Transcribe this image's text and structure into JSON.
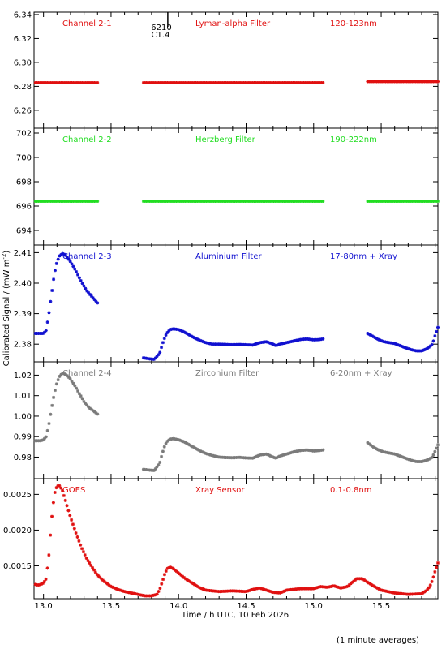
{
  "colors": {
    "axis": "#000000",
    "red": "#e01010",
    "green": "#22dd22",
    "blue": "#1010d0",
    "grey": "#7a7a7a"
  },
  "shared": {
    "xlabel": "Time / h UTC, 10 Feb 2026",
    "ylabel": "Calibrated Signal / (mW m",
    "ylabel_sup": "-2",
    "ylabel_close": ")",
    "footnote": "(1 minute averages)",
    "xlim": [
      12.93,
      15.92
    ],
    "xticks": [
      13.0,
      13.5,
      14.0,
      14.5,
      15.0,
      15.5
    ],
    "xtick_labels": [
      "13.0",
      "13.5",
      "14.0",
      "14.5",
      "15.0",
      "15.5"
    ]
  },
  "marker": {
    "label_top": "6210",
    "label_bottom": "C1.4",
    "x": 13.92
  },
  "chart_data": [
    {
      "type": "scatter",
      "channel": "Channel 2-1",
      "filter": "Lyman-alpha Filter",
      "band": "120-123nm",
      "color": "#e01010",
      "ylim": [
        6.245,
        6.342
      ],
      "yticks": [
        6.26,
        6.28,
        6.3,
        6.32,
        6.34
      ],
      "ytick_labels": [
        "6.26",
        "6.28",
        "6.30",
        "6.32",
        "6.34"
      ],
      "series": [
        {
          "x": [
            12.94,
            13.4
          ],
          "y": [
            6.283,
            6.283
          ]
        },
        {
          "x": [
            13.74,
            15.07
          ],
          "y": [
            6.283,
            6.283
          ]
        },
        {
          "x": [
            15.4,
            15.92
          ],
          "y": [
            6.284,
            6.284
          ]
        }
      ]
    },
    {
      "type": "scatter",
      "channel": "Channel 2-2",
      "filter": "Herzberg Filter",
      "band": "190-222nm",
      "color": "#22dd22",
      "ylim": [
        692.8,
        702.4
      ],
      "yticks": [
        694,
        696,
        698,
        700,
        702
      ],
      "ytick_labels": [
        "694",
        "696",
        "698",
        "700",
        "702"
      ],
      "series": [
        {
          "x": [
            12.94,
            13.4
          ],
          "y": [
            696.4,
            696.4
          ]
        },
        {
          "x": [
            13.74,
            15.07
          ],
          "y": [
            696.4,
            696.4
          ]
        },
        {
          "x": [
            15.4,
            15.92
          ],
          "y": [
            696.4,
            696.4
          ]
        }
      ]
    },
    {
      "type": "scatter",
      "channel": "Channel 2-3",
      "filter": "Aluminium Filter",
      "band": "17-80nm + Xray",
      "color": "#1010d0",
      "ylim": [
        2.3742,
        2.4125
      ],
      "yticks": [
        2.38,
        2.39,
        2.4,
        2.41
      ],
      "ytick_labels": [
        "2.38",
        "2.39",
        "2.40",
        "2.41"
      ],
      "series": [
        {
          "x": [
            12.94,
            12.98,
            13.0,
            13.02,
            13.04,
            13.06,
            13.08,
            13.1,
            13.12,
            13.14,
            13.16,
            13.18,
            13.2,
            13.22,
            13.24,
            13.26,
            13.28,
            13.3,
            13.32,
            13.34,
            13.36,
            13.38,
            13.4
          ],
          "y": [
            2.3835,
            2.3835,
            2.3835,
            2.3845,
            2.39,
            2.3965,
            2.403,
            2.407,
            2.409,
            2.4097,
            2.4093,
            2.4082,
            2.407,
            2.4055,
            2.404,
            2.4022,
            2.4005,
            2.399,
            2.3975,
            2.3965,
            2.3955,
            2.3945,
            2.3935
          ]
        },
        {
          "x": [
            13.74,
            13.78,
            13.82,
            13.86,
            13.88,
            13.9,
            13.92,
            13.94,
            13.96,
            14.0,
            14.04,
            14.08,
            14.12,
            14.16,
            14.2,
            14.25,
            14.3,
            14.35,
            14.4,
            14.45,
            14.5,
            14.55,
            14.6,
            14.65,
            14.7,
            14.72,
            14.75,
            14.8,
            14.85,
            14.9,
            14.95,
            15.0,
            15.04,
            15.07
          ],
          "y": [
            2.3755,
            2.3752,
            2.375,
            2.377,
            2.38,
            2.3825,
            2.384,
            2.3848,
            2.385,
            2.3848,
            2.384,
            2.383,
            2.382,
            2.3812,
            2.3805,
            2.38,
            2.38,
            2.3799,
            2.3798,
            2.3799,
            2.3798,
            2.3797,
            2.3805,
            2.3808,
            2.38,
            2.3795,
            2.38,
            2.3805,
            2.381,
            2.3815,
            2.3817,
            2.3814,
            2.3815,
            2.3817
          ]
        },
        {
          "x": [
            15.4,
            15.44,
            15.48,
            15.52,
            15.56,
            15.6,
            15.64,
            15.68,
            15.72,
            15.76,
            15.8,
            15.84,
            15.88,
            15.9,
            15.92
          ],
          "y": [
            2.3835,
            2.3825,
            2.3815,
            2.3808,
            2.3805,
            2.3802,
            2.3795,
            2.3788,
            2.3782,
            2.3778,
            2.3778,
            2.3785,
            2.38,
            2.383,
            2.3855
          ]
        }
      ]
    },
    {
      "type": "scatter",
      "channel": "Channel 2-4",
      "filter": "Zirconium Filter",
      "band": "6-20nm + Xray",
      "color": "#7a7a7a",
      "ylim": [
        0.9695,
        1.0265
      ],
      "yticks": [
        0.98,
        0.99,
        1.0,
        1.01,
        1.02
      ],
      "ytick_labels": [
        "0.98",
        "0.99",
        "1.00",
        "1.01",
        "1.02"
      ],
      "series": [
        {
          "x": [
            12.94,
            12.98,
            13.0,
            13.02,
            13.04,
            13.06,
            13.08,
            13.1,
            13.12,
            13.14,
            13.16,
            13.18,
            13.2,
            13.22,
            13.24,
            13.26,
            13.28,
            13.3,
            13.32,
            13.34,
            13.36,
            13.38,
            13.4
          ],
          "y": [
            0.988,
            0.988,
            0.9885,
            0.99,
            0.996,
            1.004,
            1.011,
            1.0165,
            1.0195,
            1.021,
            1.0205,
            1.0195,
            1.018,
            1.016,
            1.014,
            1.0115,
            1.0095,
            1.007,
            1.0055,
            1.004,
            1.003,
            1.002,
            1.001
          ]
        },
        {
          "x": [
            13.74,
            13.78,
            13.82,
            13.86,
            13.88,
            13.9,
            13.92,
            13.94,
            13.96,
            14.0,
            14.04,
            14.08,
            14.12,
            14.16,
            14.2,
            14.25,
            14.3,
            14.35,
            14.4,
            14.45,
            14.5,
            14.55,
            14.6,
            14.65,
            14.7,
            14.72,
            14.75,
            14.8,
            14.85,
            14.9,
            14.95,
            15.0,
            15.04,
            15.07
          ],
          "y": [
            0.974,
            0.9737,
            0.9735,
            0.977,
            0.982,
            0.986,
            0.988,
            0.9888,
            0.989,
            0.9885,
            0.9875,
            0.986,
            0.9845,
            0.983,
            0.9818,
            0.9808,
            0.98,
            0.9798,
            0.9797,
            0.9799,
            0.9796,
            0.9795,
            0.981,
            0.9815,
            0.98,
            0.9795,
            0.9805,
            0.9815,
            0.9825,
            0.9832,
            0.9835,
            0.983,
            0.9832,
            0.9835
          ]
        },
        {
          "x": [
            15.4,
            15.44,
            15.48,
            15.52,
            15.56,
            15.6,
            15.64,
            15.68,
            15.72,
            15.76,
            15.8,
            15.84,
            15.88,
            15.9,
            15.92
          ],
          "y": [
            0.987,
            0.985,
            0.9835,
            0.9825,
            0.982,
            0.9815,
            0.9805,
            0.9795,
            0.9785,
            0.9778,
            0.9778,
            0.9785,
            0.98,
            0.983,
            0.986
          ]
        }
      ]
    },
    {
      "type": "scatter",
      "channel": "GOES",
      "filter": "Xray Sensor",
      "band": "0.1-0.8nm",
      "color": "#e01010",
      "ylim": [
        0.00104,
        0.00272
      ],
      "yticks": [
        0.0015,
        0.002,
        0.0025
      ],
      "ytick_labels": [
        "0.0015",
        "0.0020",
        "0.0025"
      ],
      "series": [
        {
          "x": [
            12.94,
            12.96,
            12.98,
            13.0,
            13.02,
            13.04,
            13.06,
            13.08,
            13.1,
            13.12,
            13.14,
            13.16,
            13.18,
            13.2,
            13.24,
            13.28,
            13.32,
            13.36,
            13.4,
            13.45,
            13.5,
            13.55,
            13.6,
            13.65,
            13.7,
            13.75,
            13.8,
            13.84,
            13.86,
            13.88,
            13.9,
            13.92,
            13.94,
            13.96,
            14.0,
            14.05,
            14.1,
            14.15,
            14.2,
            14.3,
            14.4,
            14.5,
            14.55,
            14.6,
            14.65,
            14.7,
            14.75,
            14.8,
            14.9,
            15.0,
            15.05,
            15.1,
            15.15,
            15.2,
            15.25,
            15.28,
            15.32,
            15.36,
            15.4,
            15.45,
            15.5,
            15.6,
            15.7,
            15.8,
            15.84,
            15.86,
            15.88,
            15.9,
            15.92
          ],
          "y": [
            0.00124,
            0.00123,
            0.00124,
            0.00126,
            0.00132,
            0.00165,
            0.00215,
            0.0025,
            0.00262,
            0.00262,
            0.00255,
            0.00243,
            0.0023,
            0.00218,
            0.00196,
            0.00176,
            0.0016,
            0.00148,
            0.00137,
            0.00128,
            0.00121,
            0.00117,
            0.00114,
            0.00112,
            0.0011,
            0.00108,
            0.00108,
            0.0011,
            0.00117,
            0.00128,
            0.0014,
            0.00147,
            0.00148,
            0.00146,
            0.0014,
            0.00132,
            0.00126,
            0.0012,
            0.00116,
            0.00114,
            0.00115,
            0.00114,
            0.00117,
            0.00119,
            0.00116,
            0.00113,
            0.00112,
            0.00116,
            0.00118,
            0.00118,
            0.00121,
            0.0012,
            0.00122,
            0.00119,
            0.00121,
            0.00126,
            0.00132,
            0.00132,
            0.00127,
            0.00121,
            0.00116,
            0.00112,
            0.0011,
            0.00111,
            0.00116,
            0.00121,
            0.0013,
            0.00143,
            0.00154
          ]
        }
      ]
    }
  ]
}
